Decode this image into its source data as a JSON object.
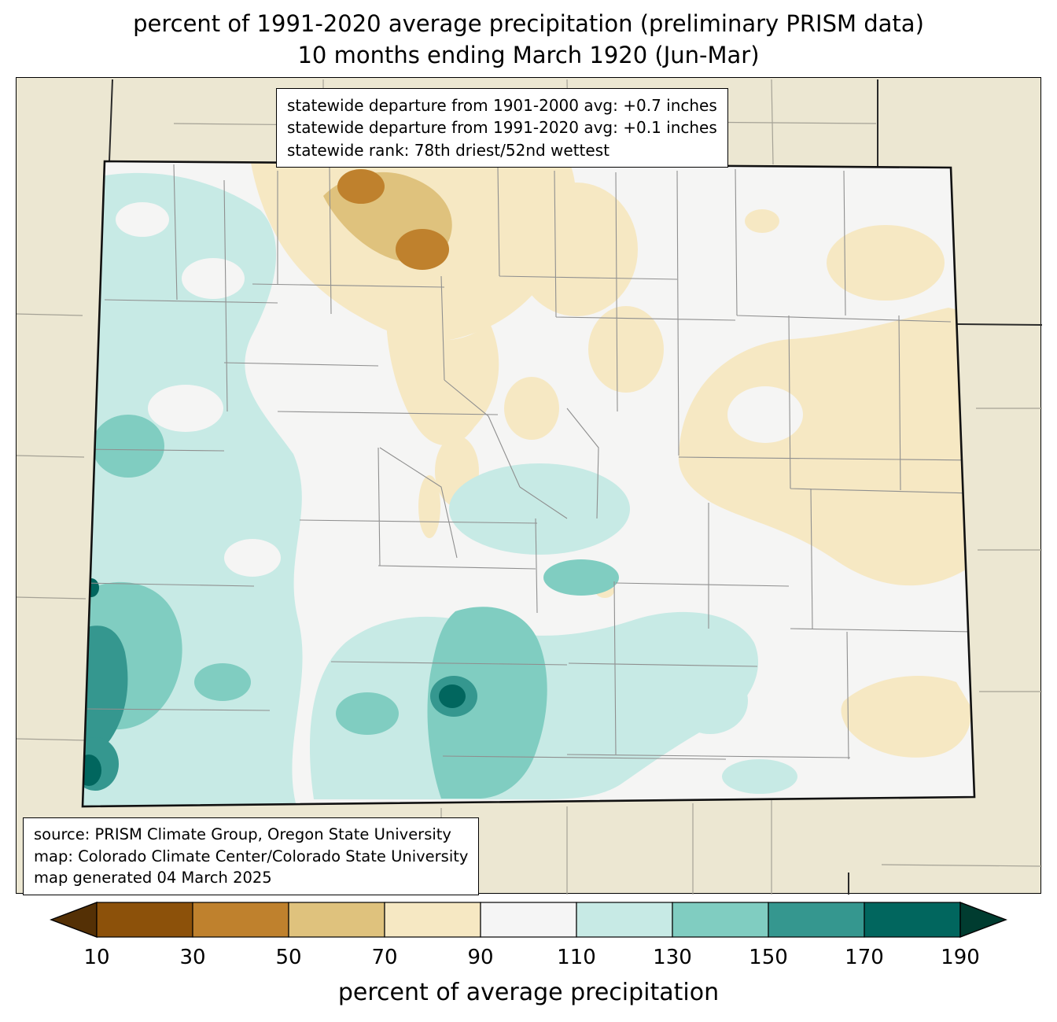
{
  "title": {
    "line1": "percent of 1991-2020 average precipitation (preliminary PRISM data)",
    "line2": "10 months ending March 1920 (Jun-Mar)"
  },
  "stats_box": {
    "lines": [
      "statewide departure from 1901-2000 avg: +0.7 inches",
      "statewide departure from 1991-2020 avg: +0.1 inches",
      "statewide rank: 78th driest/52nd wettest"
    ]
  },
  "source_box": {
    "lines": [
      "source: PRISM Climate Group, Oregon State University",
      "map: Colorado Climate Center/Colorado State University",
      "map generated 04 March 2025"
    ]
  },
  "colorbar": {
    "label": "percent of average precipitation",
    "ticks": [
      "10",
      "30",
      "50",
      "70",
      "90",
      "110",
      "130",
      "150",
      "170",
      "190"
    ],
    "segment_colors": [
      "#8c510a",
      "#bf812d",
      "#dfc27d",
      "#f6e8c3",
      "#f5f5f5",
      "#c7eae5",
      "#80cdc1",
      "#35978f",
      "#01665e"
    ],
    "arrow_left_color": "#543005",
    "arrow_right_color": "#003c30",
    "outline_color": "#000000"
  },
  "map_colors": {
    "outside_mask": "#ece7d2",
    "near_normal": "#f5f5f4",
    "pale_tan": "#f6e8c3",
    "medium_tan": "#dfc27d",
    "brown": "#bf812d",
    "pale_teal": "#c7eae5",
    "light_teal": "#80cdc1",
    "teal": "#35978f",
    "dark_teal": "#01665e"
  }
}
